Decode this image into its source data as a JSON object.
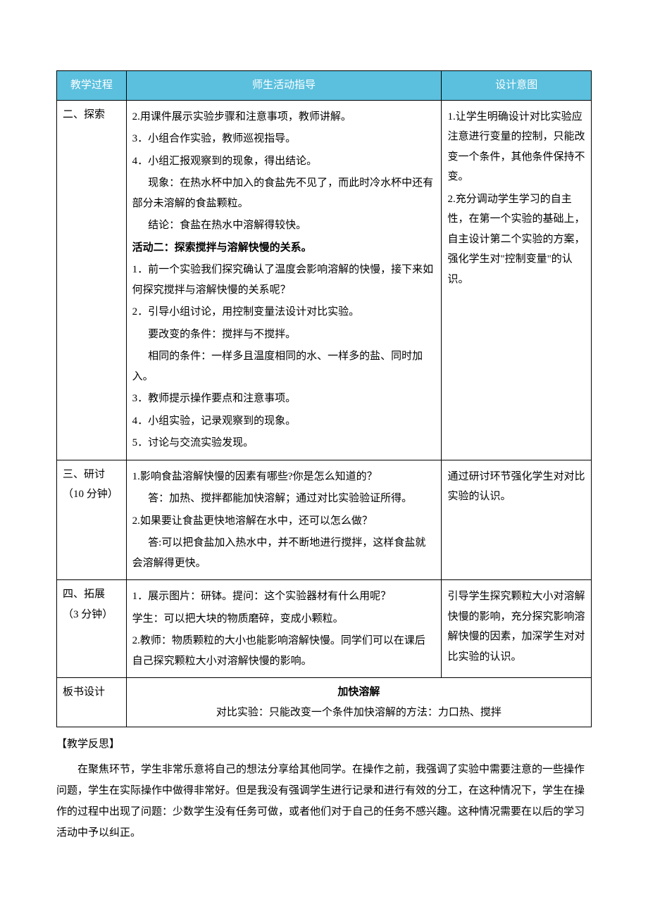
{
  "headers": {
    "col1": "教学过程",
    "col2": "师生活动指导",
    "col3": "设计意图"
  },
  "rows": {
    "explore": {
      "stage": "二、探索",
      "content": {
        "p1": "2.用课件展示实验步骤和注意事项，教师讲解。",
        "p2": "3．小组合作实验，教师巡视指导。",
        "p3": "4．小组汇报观察到的现象，得出结论。",
        "p4": "现象：在热水杯中加入的食盐先不见了，而此时冷水杯中还有部分未溶解的食盐颗粒。",
        "p5": "结论：食盐在热水中溶解得较快。",
        "p6": "活动二：探索搅拌与溶解快慢的关系。",
        "p7": "1．前一个实验我们探究确认了温度会影响溶解的快慢，接下来如何探究搅拌与溶解快慢的关系呢？",
        "p8": "2．引导小组讨论，用控制变量法设计对比实验。",
        "p9": "要改变的条件：搅拌与不搅拌。",
        "p10": "相同的条件：一样多且温度相同的水、一样多的盐、同时加入。",
        "p11": "3．教师提示操作要点和注意事项。",
        "p12": "4．小组实验，记录观察到的现象。",
        "p13": "5．讨论与交流实验发现。"
      },
      "intent": {
        "p1": "1.让学生明确设计对比实验应注意进行变量的控制，只能改变一个条件，其他条件保持不变。",
        "p2": "2.充分调动学生学习的自主性，在第一个实验的基础上，自主设计第二个实验的方案，强化学生对\"控制变量\"的认识。"
      }
    },
    "discuss": {
      "stage": "三、研讨（10 分钟）",
      "content": {
        "p1": "1.影响食盐溶解快慢的因素有哪些?你是怎么知道的？",
        "p2": "答：加热、搅拌都能加快溶解；通过对比实验验证所得。",
        "p3": "2.如果要让食盐更快地溶解在水中，还可以怎么做？",
        "p4": "答:可以把食盐加入热水中，并不断地进行搅拌，这样食盐就会溶解得更快。"
      },
      "intent": {
        "p1": "通过研讨环节强化学生对对比实验的认识。"
      }
    },
    "extend": {
      "stage": "四、拓展（3 分钟）",
      "content": {
        "p1": "1．展示图片：研钵。提问：这个实验器材有什么用呢？",
        "p2": "学生：可以把大块的物质磨碎，变成小颗粒。",
        "p3": "2.教师：物质颗粒的大小也能影响溶解快慢。同学们可以在课后自己探究颗粒大小对溶解快慢的影响。"
      },
      "intent": {
        "p1": "引导学生探究颗粒大小对溶解快慢的影响，充分探究影响溶解快慢的因素，加深学生对对比实验的认识。"
      }
    },
    "board": {
      "label": "板书设计",
      "title": "加快溶解",
      "text": "对比实验：只能改变一个条件加快溶解的方法：力口热、搅拌"
    }
  },
  "reflection": {
    "title": "【教学反思】",
    "body": "在聚焦环节，学生非常乐意将自己的想法分享给其他同学。在操作之前，我强调了实验中需要注意的一些操作问题，学生在实际操作中做得非常好。但是我没有强调学生进行记录和进行有效的分工，在这种情况下，学生在操作的过程中出现了问题：少数学生没有任务可做，或者他们对于自己的任务不感兴趣。这种情况需要在以后的学习活动中予以纠正。"
  },
  "colors": {
    "header_bg": "#5bc0de",
    "header_text": "#ffffff",
    "border": "#000000",
    "text": "#000000",
    "background": "#ffffff"
  },
  "typography": {
    "font_family": "SimSun",
    "font_size": 15,
    "line_height": 1.9
  }
}
